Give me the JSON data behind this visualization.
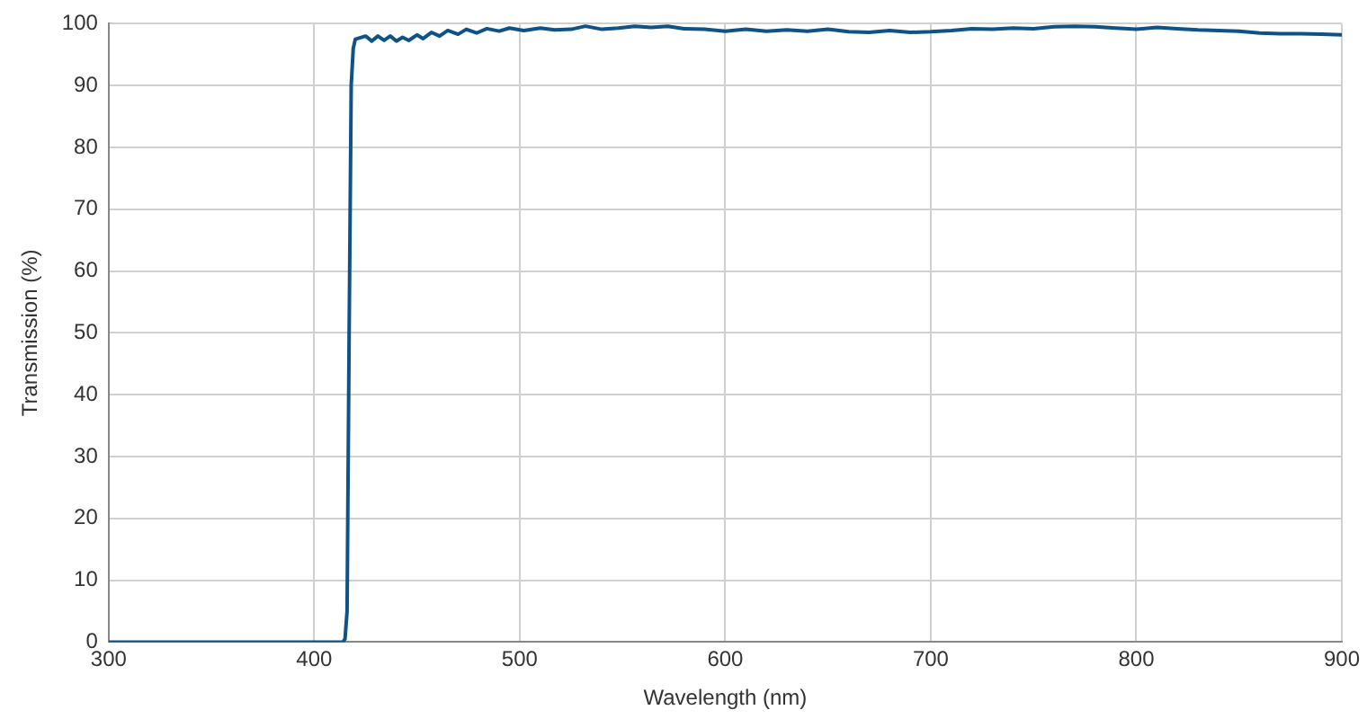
{
  "chart_data": {
    "type": "line",
    "xlabel": "Wavelength (nm)",
    "ylabel": "Transmission (%)",
    "xlim": [
      300,
      900
    ],
    "xticks": [
      300,
      400,
      500,
      600,
      700,
      800,
      900
    ],
    "ylim": [
      0,
      100
    ],
    "yticks": [
      0,
      10,
      20,
      30,
      40,
      50,
      60,
      70,
      80,
      90,
      100
    ],
    "grid": true,
    "legend": false,
    "marker": "none",
    "line_style": "solid",
    "series": [
      {
        "color": "#0f5285",
        "x": [
          300,
          414,
          415,
          416,
          417,
          418,
          419,
          420,
          425,
          428,
          431,
          434,
          437,
          440,
          443,
          446,
          450,
          453,
          457,
          461,
          465,
          470,
          474,
          479,
          484,
          490,
          495,
          502,
          510,
          517,
          525,
          532,
          540,
          548,
          556,
          564,
          572,
          580,
          590,
          600,
          610,
          620,
          630,
          640,
          650,
          660,
          670,
          680,
          690,
          700,
          710,
          720,
          730,
          740,
          750,
          760,
          770,
          780,
          790,
          800,
          810,
          820,
          830,
          840,
          850,
          860,
          870,
          880,
          890,
          900
        ],
        "values": [
          0,
          0,
          0.5,
          5,
          50,
          90,
          96,
          97.5,
          98,
          97.2,
          98,
          97.3,
          98,
          97.2,
          97.8,
          97.3,
          98.2,
          97.6,
          98.6,
          98,
          98.9,
          98.3,
          99.1,
          98.5,
          99.2,
          98.8,
          99.3,
          98.9,
          99.3,
          99,
          99.1,
          99.6,
          99.1,
          99.3,
          99.6,
          99.4,
          99.6,
          99.2,
          99.1,
          98.8,
          99.1,
          98.8,
          99,
          98.8,
          99.1,
          98.7,
          98.6,
          98.9,
          98.6,
          98.7,
          98.9,
          99.2,
          99.1,
          99.3,
          99.2,
          99.5,
          99.6,
          99.5,
          99.3,
          99.1,
          99.4,
          99.2,
          99,
          98.9,
          98.8,
          98.5,
          98.4,
          98.4,
          98.3,
          98.2
        ]
      }
    ]
  }
}
